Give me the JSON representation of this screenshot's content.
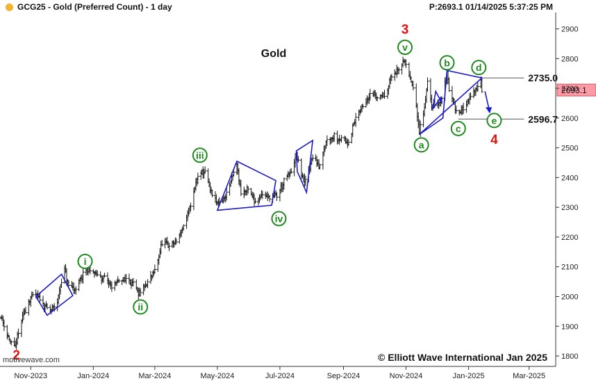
{
  "header": {
    "symbol": "GCG25",
    "description": "GCG25 - Gold (Preferred Count) - 1 day",
    "price_info": "P:2693.1  01/14/2025 5:37:25 PM",
    "dot_color": "#f2b52f"
  },
  "footer": {
    "watermark": "motivewave.com",
    "copyright": "© Elliott Wave International Jan 2025"
  },
  "chart_data": {
    "type": "ohlc",
    "title": "Gold",
    "x_ticks": [
      "Nov-2023",
      "Jan-2024",
      "Mar-2024",
      "May-2024",
      "Jul-2024",
      "Sep-2024",
      "Nov-2024",
      "Jan-2025",
      "Mar-2025"
    ],
    "y_ticks": [
      1800,
      1900,
      2000,
      2100,
      2200,
      2300,
      2400,
      2500,
      2600,
      2700,
      2800,
      2900
    ],
    "ylim": [
      1765,
      2955
    ],
    "xlim": [
      "2023-10-02",
      "2025-03-27"
    ],
    "current_price": "2693.1",
    "grid": false,
    "colors": {
      "bars": "#111111",
      "channels": "#1a1acc",
      "minor_wave": "#1e8a1e",
      "major_wave": "#e01010",
      "price_box": "#ff9aa6"
    },
    "price_path": [
      [
        "2023-10-03",
        1935
      ],
      [
        "2023-10-06",
        1905
      ],
      [
        "2023-10-12",
        1845
      ],
      [
        "2023-10-17",
        1828
      ],
      [
        "2023-10-20",
        1880
      ],
      [
        "2023-10-24",
        1930
      ],
      [
        "2023-10-30",
        1985
      ],
      [
        "2023-11-06",
        2010
      ],
      [
        "2023-11-13",
        1975
      ],
      [
        "2023-11-20",
        1950
      ],
      [
        "2023-11-27",
        1985
      ],
      [
        "2023-12-01",
        2050
      ],
      [
        "2023-12-04",
        2090
      ],
      [
        "2023-12-08",
        2030
      ],
      [
        "2023-12-15",
        2025
      ],
      [
        "2023-12-22",
        2075
      ],
      [
        "2023-12-28",
        2095
      ],
      [
        "2024-01-05",
        2070
      ],
      [
        "2024-01-12",
        2060
      ],
      [
        "2024-01-19",
        2035
      ],
      [
        "2024-01-26",
        2050
      ],
      [
        "2024-02-02",
        2060
      ],
      [
        "2024-02-09",
        2045
      ],
      [
        "2024-02-14",
        2005
      ],
      [
        "2024-02-22",
        2040
      ],
      [
        "2024-03-01",
        2085
      ],
      [
        "2024-03-08",
        2180
      ],
      [
        "2024-03-15",
        2170
      ],
      [
        "2024-03-22",
        2185
      ],
      [
        "2024-04-01",
        2260
      ],
      [
        "2024-04-08",
        2350
      ],
      [
        "2024-04-12",
        2410
      ],
      [
        "2024-04-19",
        2420
      ],
      [
        "2024-04-24",
        2355
      ],
      [
        "2024-05-01",
        2310
      ],
      [
        "2024-05-08",
        2330
      ],
      [
        "2024-05-15",
        2395
      ],
      [
        "2024-05-20",
        2445
      ],
      [
        "2024-05-24",
        2350
      ],
      [
        "2024-05-31",
        2360
      ],
      [
        "2024-06-07",
        2320
      ],
      [
        "2024-06-14",
        2345
      ],
      [
        "2024-06-21",
        2335
      ],
      [
        "2024-06-28",
        2340
      ],
      [
        "2024-07-05",
        2385
      ],
      [
        "2024-07-12",
        2420
      ],
      [
        "2024-07-17",
        2470
      ],
      [
        "2024-07-25",
        2380
      ],
      [
        "2024-08-02",
        2470
      ],
      [
        "2024-08-08",
        2440
      ],
      [
        "2024-08-16",
        2530
      ],
      [
        "2024-08-23",
        2540
      ],
      [
        "2024-08-30",
        2530
      ],
      [
        "2024-09-06",
        2520
      ],
      [
        "2024-09-13",
        2600
      ],
      [
        "2024-09-20",
        2640
      ],
      [
        "2024-09-27",
        2685
      ],
      [
        "2024-10-04",
        2670
      ],
      [
        "2024-10-11",
        2680
      ],
      [
        "2024-10-18",
        2740
      ],
      [
        "2024-10-25",
        2760
      ],
      [
        "2024-10-30",
        2800
      ],
      [
        "2024-11-04",
        2745
      ],
      [
        "2024-11-08",
        2700
      ],
      [
        "2024-11-14",
        2560
      ],
      [
        "2024-11-18",
        2615
      ],
      [
        "2024-11-22",
        2720
      ],
      [
        "2024-11-26",
        2640
      ],
      [
        "2024-12-02",
        2650
      ],
      [
        "2024-12-06",
        2660
      ],
      [
        "2024-12-11",
        2760
      ],
      [
        "2024-12-13",
        2700
      ],
      [
        "2024-12-18",
        2650
      ],
      [
        "2024-12-20",
        2620
      ],
      [
        "2024-12-27",
        2630
      ],
      [
        "2025-01-02",
        2670
      ],
      [
        "2025-01-08",
        2690
      ],
      [
        "2025-01-13",
        2725
      ],
      [
        "2025-01-14",
        2693
      ]
    ],
    "channels": [
      [
        [
          "2023-11-06",
          2000
        ],
        [
          "2023-12-01",
          2075
        ],
        [
          "2023-12-12",
          2003
        ],
        [
          "2023-11-17",
          1937
        ]
      ],
      [
        [
          "2024-05-01",
          2290
        ],
        [
          "2024-05-20",
          2455
        ],
        [
          "2024-06-27",
          2390
        ],
        [
          "2024-06-23",
          2307
        ]
      ],
      [
        [
          "2024-07-17",
          2490
        ],
        [
          "2024-08-02",
          2525
        ],
        [
          "2024-07-27",
          2350
        ],
        [
          "2024-07-18",
          2420
        ]
      ],
      [
        [
          "2024-11-14",
          2545
        ],
        [
          "2024-12-07",
          2600
        ],
        [
          "2024-12-11",
          2760
        ],
        [
          "2025-01-14",
          2735
        ]
      ],
      [
        [
          "2024-11-27",
          2630
        ],
        [
          "2024-11-30",
          2690
        ],
        [
          "2024-12-06",
          2650
        ],
        [
          "2024-12-05",
          2670
        ]
      ]
    ],
    "levels": [
      {
        "value": "2735.0",
        "y": 2735,
        "from": "2025-01-14",
        "to": "2025-02-24"
      },
      {
        "value": "2596.7",
        "y": 2596.7,
        "from": "2024-12-22",
        "to": "2025-02-24"
      }
    ],
    "forecast_arrow": {
      "from": [
        "2025-01-17",
        2690
      ],
      "to": [
        "2025-01-21",
        2620
      ]
    },
    "wave_labels": [
      {
        "text": "2",
        "style": "major",
        "x": "2023-10-18",
        "y": 1805
      },
      {
        "text": "i",
        "style": "minor",
        "x": "2023-12-24",
        "y": 2118
      },
      {
        "text": "ii",
        "style": "minor",
        "x": "2024-02-16",
        "y": 1965
      },
      {
        "text": "iii",
        "style": "minor",
        "x": "2024-04-14",
        "y": 2475
      },
      {
        "text": "iv",
        "style": "minor",
        "x": "2024-06-30",
        "y": 2262
      },
      {
        "text": "3",
        "style": "major",
        "x": "2024-10-31",
        "y": 2900
      },
      {
        "text": "v",
        "style": "minor",
        "x": "2024-10-31",
        "y": 2838
      },
      {
        "text": "a",
        "style": "minor",
        "x": "2024-11-16",
        "y": 2510
      },
      {
        "text": "b",
        "style": "minor",
        "x": "2024-12-11",
        "y": 2786
      },
      {
        "text": "c",
        "style": "minor",
        "x": "2024-12-22",
        "y": 2565
      },
      {
        "text": "d",
        "style": "minor",
        "x": "2025-01-11",
        "y": 2770
      },
      {
        "text": "e",
        "style": "minor",
        "x": "2025-01-26",
        "y": 2592
      },
      {
        "text": "4",
        "style": "major",
        "x": "2025-01-26",
        "y": 2530
      }
    ]
  }
}
